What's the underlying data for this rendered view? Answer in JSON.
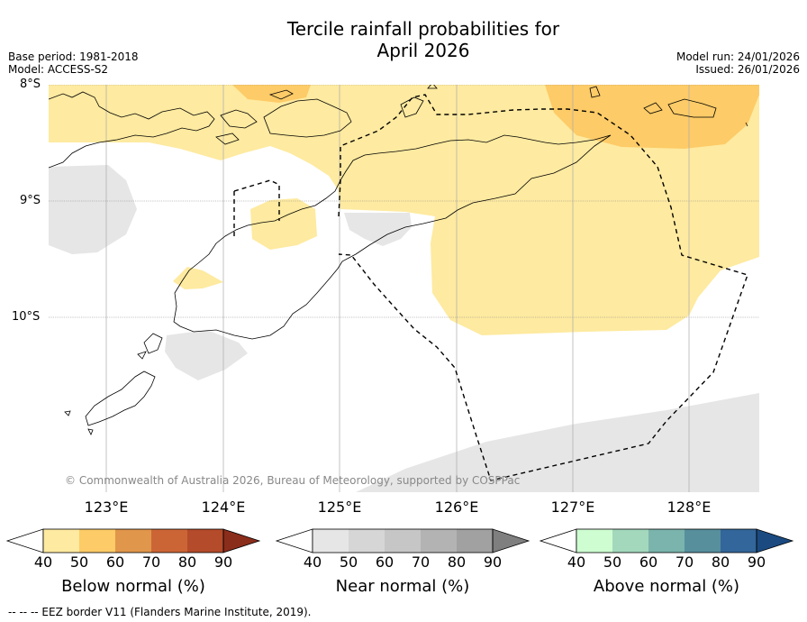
{
  "title_line1": "Tercile rainfall probabilities for",
  "title_line2": "April 2026",
  "meta_left": {
    "base_period": "Base period: 1981-2018",
    "model": "Model: ACCESS-S2"
  },
  "meta_right": {
    "model_run": "Model run: 24/01/2026",
    "issued": "Issued: 26/01/2026"
  },
  "map": {
    "lat_labels": [
      "8°S",
      "9°S",
      "10°S"
    ],
    "lon_labels": [
      "123°E",
      "124°E",
      "125°E",
      "126°E",
      "127°E",
      "128°E"
    ],
    "copyright": "© Commonwealth of Australia 2026, Bureau of Meteorology, supported by COSPPac"
  },
  "colorbars": [
    {
      "title": "Below normal (%)",
      "ticks": [
        "40",
        "50",
        "60",
        "70",
        "80",
        "90"
      ],
      "colors": [
        "#ffffff",
        "#feeaa0",
        "#fdcb67",
        "#e0964b",
        "#cc6535",
        "#b44b2a",
        "#8b2d1b"
      ]
    },
    {
      "title": "Near normal (%)",
      "ticks": [
        "40",
        "50",
        "60",
        "70",
        "80",
        "90"
      ],
      "colors": [
        "#ffffff",
        "#e6e6e6",
        "#d6d6d6",
        "#c6c6c6",
        "#b3b3b3",
        "#a1a1a1",
        "#7f7f7f"
      ]
    },
    {
      "title": "Above normal (%)",
      "ticks": [
        "40",
        "50",
        "60",
        "70",
        "80",
        "90"
      ],
      "colors": [
        "#ffffff",
        "#cdfdd1",
        "#a3d8bc",
        "#7ab4ac",
        "#578f9d",
        "#33669a",
        "#1a4a80"
      ]
    }
  ],
  "footer": "--  --  -- EEZ border V11 (Flanders Marine Institute, 2019)."
}
